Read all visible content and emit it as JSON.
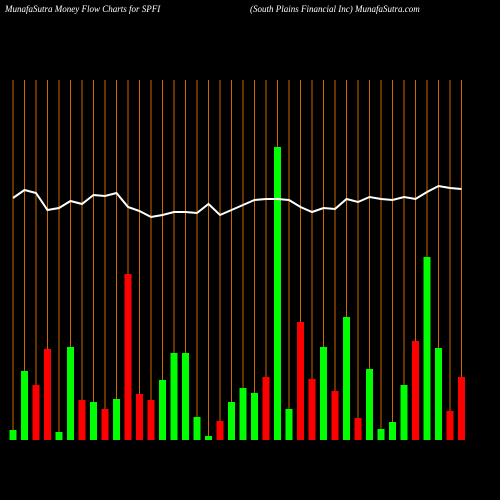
{
  "chart_data": {
    "type": "bar",
    "title": "MunafaSutra  Money Flow  Charts for SPFI",
    "subtitle": "(South Plains Financial Inc) MunafaSutra.com",
    "categories": [
      null,
      null,
      null,
      null,
      null,
      null,
      null,
      null,
      null,
      null,
      null,
      null,
      null,
      null,
      null,
      null,
      null,
      null,
      null,
      null,
      null,
      null,
      null,
      null,
      null,
      null,
      null,
      null,
      null,
      null,
      null,
      null,
      null,
      null,
      null,
      null,
      null,
      null,
      null,
      null
    ],
    "values": [
      10,
      69,
      55,
      91,
      8,
      93,
      40,
      38,
      31,
      41,
      166,
      46,
      40,
      60,
      87,
      87,
      23,
      4,
      19,
      38,
      52,
      47,
      63,
      293,
      31,
      118,
      61,
      93,
      49,
      123,
      22,
      71,
      11,
      18,
      55,
      99,
      183,
      92,
      29,
      63
    ],
    "colors": [
      "#00ff00",
      "#00ff00",
      "#ff0000",
      "#ff0000",
      "#00ff00",
      "#00ff00",
      "#ff0000",
      "#00ff00",
      "#ff0000",
      "#00ff00",
      "#ff0000",
      "#ff0000",
      "#ff0000",
      "#00ff00",
      "#00ff00",
      "#00ff00",
      "#00ff00",
      "#00ff00",
      "#ff0000",
      "#00ff00",
      "#00ff00",
      "#00ff00",
      "#ff0000",
      "#00ff00",
      "#00ff00",
      "#ff0000",
      "#ff0000",
      "#00ff00",
      "#ff0000",
      "#00ff00",
      "#ff0000",
      "#00ff00",
      "#00ff00",
      "#00ff00",
      "#00ff00",
      "#ff0000",
      "#00ff00",
      "#00ff00",
      "#ff0000",
      "#ff0000"
    ],
    "line": {
      "color": "#ffffff",
      "values": [
        242,
        250,
        247,
        230,
        232,
        239,
        236,
        245,
        244,
        247,
        233,
        229,
        223,
        225,
        228,
        228,
        227,
        236,
        225,
        230,
        235,
        240,
        241,
        241,
        240,
        233,
        228,
        232,
        231,
        241,
        238,
        243,
        241,
        240,
        243,
        241,
        248,
        254,
        252,
        251
      ]
    },
    "ylim": [
      0,
      360
    ],
    "gridline_color": "#cc6600"
  }
}
